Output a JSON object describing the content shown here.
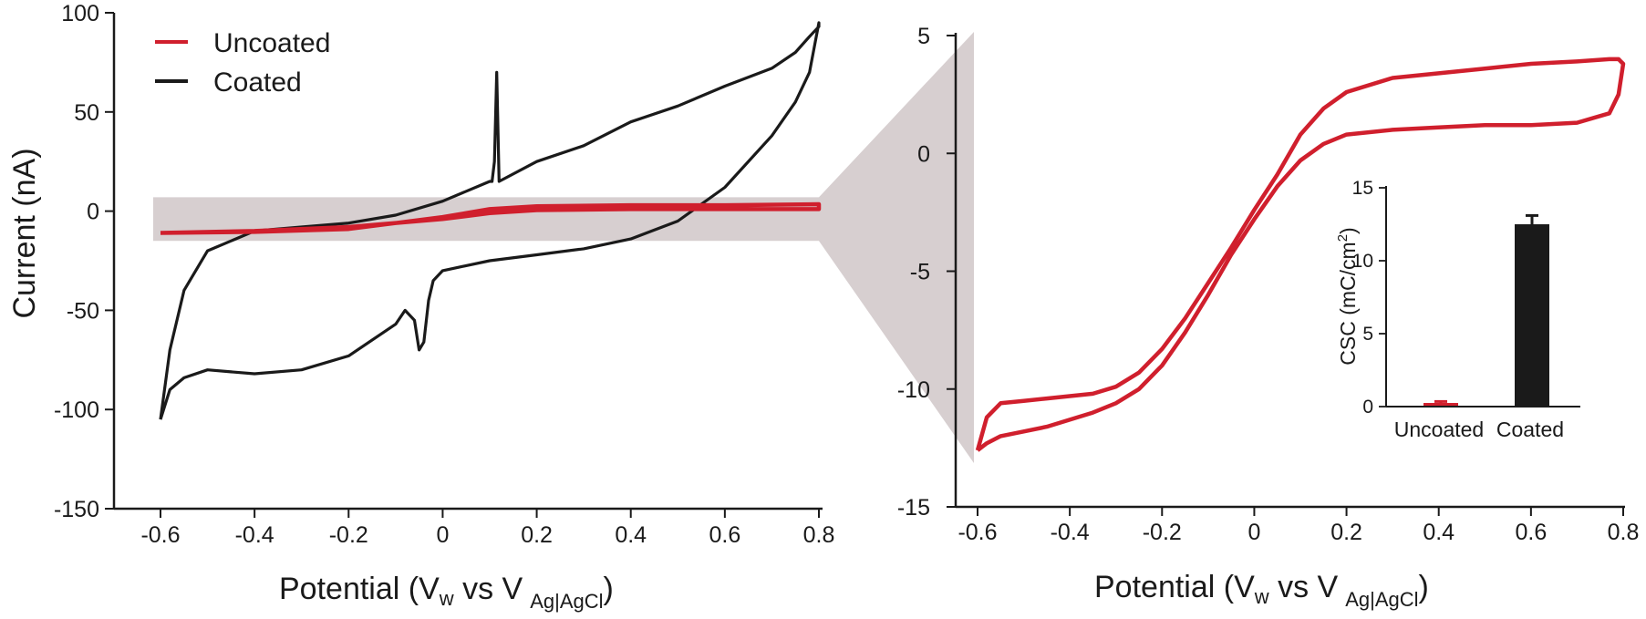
{
  "figure": {
    "left_panel": {
      "ylabel": "Current (nA)",
      "xlabel_main": "Potential (V",
      "xlabel_sub_w": "w",
      "xlabel_mid": " vs V",
      "xlabel_sub_ref": "Ag|AgCl",
      "xlabel_end": ")"
    },
    "right_panel": {
      "xlabel_main": "Potential (V",
      "xlabel_sub_w": "w",
      "xlabel_mid": " vs V",
      "xlabel_sub_ref": "Ag|AgCl",
      "xlabel_end": ")"
    },
    "inset": {
      "ylabel_main": "CSC (mC/cm",
      "ylabel_sup": "2",
      "ylabel_end": ")"
    },
    "legend": {
      "uncoated_label": "Uncoated",
      "coated_label": "Coated"
    },
    "colors": {
      "uncoated": "#d01f2d",
      "coated": "#1a1a1a",
      "highlight": "#d7cfd0"
    }
  },
  "chart_data": [
    {
      "type": "line",
      "title": "",
      "xlabel": "Potential (Vw vs V Ag|AgCl)",
      "ylabel": "Current (nA)",
      "xlim": [
        -0.7,
        0.8
      ],
      "ylim": [
        -150,
        100
      ],
      "xticks": [
        -0.6,
        -0.4,
        -0.2,
        0,
        0.2,
        0.4,
        0.6,
        0.8
      ],
      "xtick_labels": [
        "-0.6",
        "-0.4",
        "-0.2",
        "0",
        "0.2",
        "0.4",
        "0.6",
        "0.8"
      ],
      "yticks": [
        -150,
        -100,
        -50,
        0,
        50,
        100
      ],
      "ytick_labels": [
        "-150",
        "-100",
        "-50",
        "0",
        "50",
        "100"
      ],
      "highlight_band": [
        -15,
        7
      ],
      "legend": [
        "Uncoated",
        "Coated"
      ],
      "series": [
        {
          "name": "Coated",
          "x": [
            -0.6,
            -0.58,
            -0.55,
            -0.5,
            -0.45,
            -0.4,
            -0.3,
            -0.2,
            -0.1,
            -0.08,
            -0.06,
            -0.05,
            -0.04,
            -0.03,
            -0.02,
            0.0,
            0.1,
            0.2,
            0.3,
            0.4,
            0.5,
            0.6,
            0.7,
            0.75,
            0.78,
            0.8,
            0.8,
            0.78,
            0.75,
            0.7,
            0.6,
            0.5,
            0.4,
            0.3,
            0.2,
            0.12,
            0.115,
            0.11,
            0.105,
            0.1,
            0.0,
            -0.1,
            -0.2,
            -0.3,
            -0.4,
            -0.5,
            -0.55,
            -0.58,
            -0.6
          ],
          "y": [
            -105,
            -90,
            -84,
            -80,
            -81,
            -82,
            -80,
            -73,
            -57,
            -50,
            -55,
            -70,
            -66,
            -45,
            -35,
            -30,
            -25,
            -22,
            -19,
            -14,
            -5,
            12,
            38,
            55,
            70,
            95,
            93,
            88,
            80,
            72,
            63,
            53,
            45,
            33,
            25,
            15,
            70,
            25,
            15,
            15,
            5,
            -2,
            -6,
            -8,
            -10,
            -20,
            -40,
            -70,
            -105
          ]
        },
        {
          "name": "Uncoated",
          "x": [
            -0.6,
            -0.4,
            -0.2,
            0.0,
            0.1,
            0.2,
            0.4,
            0.6,
            0.8,
            0.8,
            0.6,
            0.4,
            0.2,
            0.1,
            0.0,
            -0.2,
            -0.4,
            -0.6
          ],
          "y": [
            -11,
            -10.5,
            -9,
            -3,
            1,
            2.5,
            3,
            3,
            3.5,
            1,
            1,
            1,
            0.5,
            -1,
            -4,
            -8,
            -10,
            -11
          ]
        }
      ]
    },
    {
      "type": "line",
      "title": "",
      "xlabel": "Potential (Vw vs V Ag|AgCl)",
      "ylabel": "",
      "xlim": [
        -0.65,
        0.8
      ],
      "ylim": [
        -15,
        5
      ],
      "xticks": [
        -0.6,
        -0.4,
        -0.2,
        0,
        0.2,
        0.4,
        0.6,
        0.8
      ],
      "xtick_labels": [
        "-0.6",
        "-0.4",
        "-0.2",
        "0",
        "0.2",
        "0.4",
        "0.6",
        "0.8"
      ],
      "yticks": [
        -15,
        -10,
        -5,
        0,
        5
      ],
      "ytick_labels": [
        "-15",
        "-10",
        "-5",
        "0",
        "5"
      ],
      "series": [
        {
          "name": "Uncoated",
          "x": [
            -0.6,
            -0.58,
            -0.55,
            -0.5,
            -0.45,
            -0.4,
            -0.35,
            -0.3,
            -0.25,
            -0.2,
            -0.15,
            -0.1,
            -0.05,
            0.0,
            0.05,
            0.1,
            0.15,
            0.2,
            0.3,
            0.4,
            0.5,
            0.6,
            0.7,
            0.77,
            0.79,
            0.8,
            0.79,
            0.77,
            0.7,
            0.6,
            0.5,
            0.4,
            0.3,
            0.2,
            0.15,
            0.1,
            0.05,
            0.0,
            -0.05,
            -0.1,
            -0.15,
            -0.2,
            -0.25,
            -0.3,
            -0.35,
            -0.4,
            -0.45,
            -0.5,
            -0.55,
            -0.58,
            -0.6
          ],
          "y": [
            -12.6,
            -12.3,
            -12.0,
            -11.8,
            -11.6,
            -11.3,
            -11.0,
            -10.6,
            -10.0,
            -9.0,
            -7.6,
            -6.0,
            -4.3,
            -2.8,
            -1.4,
            -0.3,
            0.4,
            0.8,
            1.0,
            1.1,
            1.2,
            1.2,
            1.3,
            1.7,
            2.5,
            3.8,
            4.0,
            4.0,
            3.9,
            3.8,
            3.6,
            3.4,
            3.2,
            2.6,
            1.9,
            0.8,
            -0.9,
            -2.4,
            -4.0,
            -5.5,
            -7.0,
            -8.3,
            -9.3,
            -9.9,
            -10.2,
            -10.3,
            -10.4,
            -10.5,
            -10.6,
            -11.2,
            -12.6
          ]
        }
      ]
    },
    {
      "type": "bar",
      "title": "",
      "xlabel": "",
      "ylabel": "CSC (mC/cm2)",
      "categories": [
        "Uncoated",
        "Coated"
      ],
      "values": [
        0.25,
        12.5
      ],
      "errors": [
        0.1,
        0.6
      ],
      "ylim": [
        0,
        15
      ],
      "yticks": [
        0,
        5,
        10,
        15
      ],
      "ytick_labels": [
        "0",
        "5",
        "10",
        "15"
      ]
    }
  ]
}
